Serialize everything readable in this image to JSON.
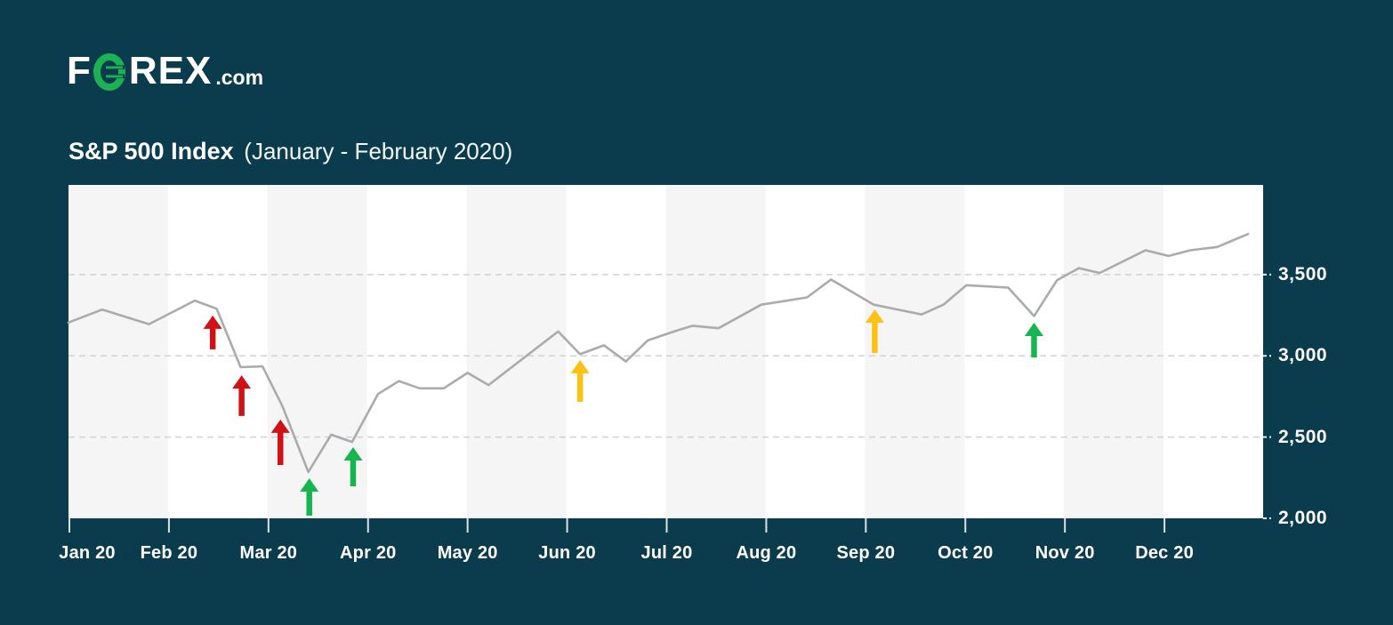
{
  "logo": {
    "brand_first": "F",
    "brand_rest": "REX",
    "brand_tld": ".com",
    "o_color": "#1db155"
  },
  "header": {
    "title": "S&P 500 Index",
    "subtitle": "(January - February 2020)"
  },
  "theme": {
    "background": "#0b3c4d",
    "chart_bg": "#ffffff",
    "band_gray": "#f5f5f5",
    "gridline": "#d2d2d2",
    "line_color": "#a9abad",
    "tick_color": "#ffffff"
  },
  "chart_data": {
    "type": "line",
    "title": "S&P 500 Index",
    "subtitle": "(January - February 2020)",
    "xlabel": "",
    "ylabel": "",
    "x_tick_labels": [
      "Jan 20",
      "Feb 20",
      "Mar 20",
      "Apr 20",
      "May 20",
      "Jun 20",
      "Jul 20",
      "Aug 20",
      "Sep 20",
      "Oct 20",
      "Nov 20",
      "Dec 20"
    ],
    "y_tick_labels": [
      "3,500",
      "3,000",
      "2,500",
      "2,000"
    ],
    "y_tick_values": [
      3500,
      3000,
      2500,
      2000
    ],
    "gridline_values": [
      3500,
      3000,
      2500
    ],
    "ylim": [
      2000,
      4052
    ],
    "xlim_months": [
      0,
      12
    ],
    "grid": "dashed-horizontal",
    "legend_position": "none",
    "band_shading": "alternating-months-starting-gray",
    "series": [
      {
        "name": "S&P 500",
        "points_month_value": [
          [
            -0.01,
            3205
          ],
          [
            0.33,
            3285
          ],
          [
            0.8,
            3195
          ],
          [
            1.26,
            3340
          ],
          [
            1.48,
            3290
          ],
          [
            1.72,
            2930
          ],
          [
            1.94,
            2935
          ],
          [
            2.14,
            2690
          ],
          [
            2.4,
            2285
          ],
          [
            2.63,
            2515
          ],
          [
            2.84,
            2470
          ],
          [
            3.1,
            2765
          ],
          [
            3.31,
            2845
          ],
          [
            3.52,
            2800
          ],
          [
            3.76,
            2800
          ],
          [
            4.0,
            2895
          ],
          [
            4.21,
            2820
          ],
          [
            4.91,
            3150
          ],
          [
            5.13,
            3010
          ],
          [
            5.37,
            3065
          ],
          [
            5.59,
            2965
          ],
          [
            5.81,
            3095
          ],
          [
            6.1,
            3155
          ],
          [
            6.26,
            3185
          ],
          [
            6.52,
            3170
          ],
          [
            6.95,
            3315
          ],
          [
            7.41,
            3360
          ],
          [
            7.65,
            3470
          ],
          [
            8.08,
            3315
          ],
          [
            8.56,
            3255
          ],
          [
            8.78,
            3315
          ],
          [
            9.01,
            3435
          ],
          [
            9.43,
            3420
          ],
          [
            9.69,
            3245
          ],
          [
            9.92,
            3465
          ],
          [
            10.14,
            3540
          ],
          [
            10.35,
            3510
          ],
          [
            10.81,
            3650
          ],
          [
            11.04,
            3615
          ],
          [
            11.26,
            3650
          ],
          [
            11.53,
            3670
          ],
          [
            11.84,
            3750
          ]
        ]
      }
    ],
    "annotations": {
      "arrow_colors": {
        "red": "#d01217",
        "green": "#17b551",
        "yellow": "#fdc113"
      },
      "arrows": [
        {
          "color": "red",
          "direction": "up",
          "month": 1.44,
          "tip_value": 3248,
          "tail_value": 3040
        },
        {
          "color": "red",
          "direction": "up",
          "month": 1.73,
          "tip_value": 2880,
          "tail_value": 2630
        },
        {
          "color": "red",
          "direction": "up",
          "month": 2.12,
          "tip_value": 2608,
          "tail_value": 2328
        },
        {
          "color": "green",
          "direction": "up",
          "month": 2.41,
          "tip_value": 2246,
          "tail_value": 2016
        },
        {
          "color": "green",
          "direction": "up",
          "month": 2.85,
          "tip_value": 2438,
          "tail_value": 2197
        },
        {
          "color": "yellow",
          "direction": "up",
          "month": 5.13,
          "tip_value": 2975,
          "tail_value": 2717
        },
        {
          "color": "yellow",
          "direction": "up",
          "month": 8.09,
          "tip_value": 3286,
          "tail_value": 3018
        },
        {
          "color": "green",
          "direction": "up",
          "month": 9.69,
          "tip_value": 3204,
          "tail_value": 2990
        }
      ]
    }
  }
}
